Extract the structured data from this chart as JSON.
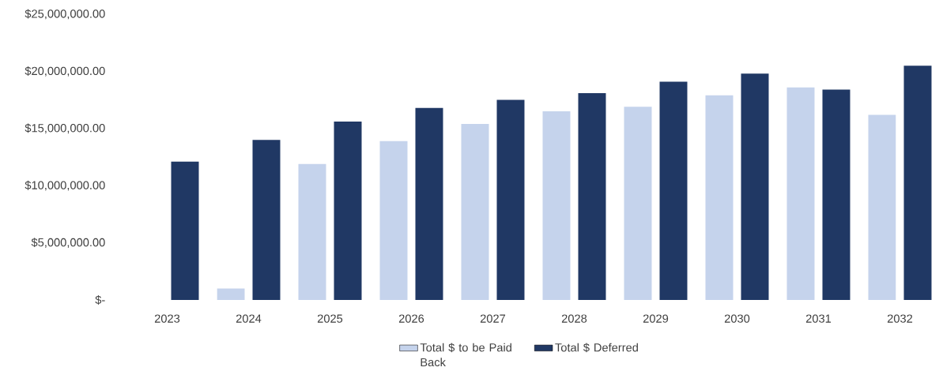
{
  "chart_data": {
    "type": "bar",
    "categories": [
      "2023",
      "2024",
      "2025",
      "2026",
      "2027",
      "2028",
      "2029",
      "2030",
      "2031",
      "2032"
    ],
    "series": [
      {
        "name": "Total $ to be Paid Back",
        "color": "#c5d3ec",
        "values": [
          null,
          1000000,
          11900000,
          13900000,
          15400000,
          16500000,
          16900000,
          17900000,
          18600000,
          16200000
        ]
      },
      {
        "name": "Total $ Deferred",
        "color": "#203864",
        "values": [
          12100000,
          14000000,
          15600000,
          16800000,
          17500000,
          18100000,
          19100000,
          19800000,
          18400000,
          20500000
        ]
      }
    ],
    "ylim": [
      0,
      25000000
    ],
    "yticks": [
      {
        "value": 0,
        "label": "$-"
      },
      {
        "value": 5000000,
        "label": "$5,000,000.00"
      },
      {
        "value": 10000000,
        "label": "$10,000,000.00"
      },
      {
        "value": 15000000,
        "label": "$15,000,000.00"
      },
      {
        "value": 20000000,
        "label": "$20,000,000.00"
      },
      {
        "value": 25000000,
        "label": "$25,000,000.00"
      }
    ],
    "legend": "bottom"
  }
}
